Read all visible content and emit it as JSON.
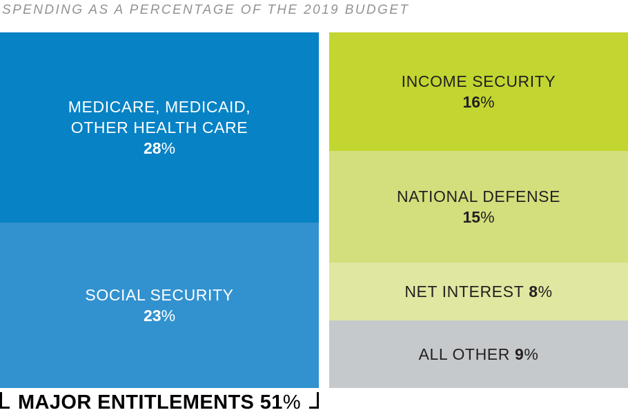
{
  "title": "SPENDING AS A PERCENTAGE OF THE 2019 BUDGET",
  "blocks": {
    "medicare": {
      "line1": "MEDICARE, MEDICAID,",
      "line2": "OTHER HEALTH CARE",
      "pct_num": "28",
      "pct_sign": "%"
    },
    "social": {
      "label": "SOCIAL SECURITY",
      "pct_num": "23",
      "pct_sign": "%"
    },
    "income": {
      "label": "INCOME SECURITY",
      "pct_num": "16",
      "pct_sign": "%"
    },
    "defense": {
      "label": "NATIONAL DEFENSE",
      "pct_num": "15",
      "pct_sign": "%"
    },
    "net_interest": {
      "label": "NET INTEREST",
      "pct_num": "8",
      "pct_sign": "%"
    },
    "all_other": {
      "label": "ALL OTHER",
      "pct_num": "9",
      "pct_sign": "%"
    }
  },
  "bracket": {
    "label": "MAJOR ENTITLEMENTS",
    "pct_num": "51",
    "pct_sign": "%"
  },
  "colors": {
    "medicare_blue": "#0682c5",
    "social_security_blue": "#3292cf",
    "income_security_green": "#c3d530",
    "national_defense_green": "#d3de7c",
    "net_interest_green": "#dfe7a0",
    "all_other_gray": "#c6c9cb",
    "title_gray": "#919396",
    "dark_text": "#231f20",
    "light_text": "#ffffff"
  },
  "chart_data": {
    "type": "treemap",
    "title": "SPENDING AS A PERCENTAGE OF THE 2019 BUDGET",
    "segments": [
      {
        "label": "MEDICARE, MEDICAID, OTHER HEALTH CARE",
        "value": 28,
        "group": "MAJOR ENTITLEMENTS",
        "color": "#0682c5",
        "column": "left"
      },
      {
        "label": "SOCIAL SECURITY",
        "value": 23,
        "group": "MAJOR ENTITLEMENTS",
        "color": "#3292cf",
        "column": "left"
      },
      {
        "label": "INCOME SECURITY",
        "value": 16,
        "color": "#c3d530",
        "column": "right"
      },
      {
        "label": "NATIONAL DEFENSE",
        "value": 15,
        "color": "#d3de7c",
        "column": "right"
      },
      {
        "label": "NET INTEREST",
        "value": 8,
        "color": "#dfe7a0",
        "column": "right"
      },
      {
        "label": "ALL OTHER",
        "value": 9,
        "color": "#c6c9cb",
        "column": "right"
      }
    ],
    "annotation": {
      "label": "MAJOR ENTITLEMENTS",
      "value": 51
    },
    "legend": "none",
    "grid": false
  }
}
